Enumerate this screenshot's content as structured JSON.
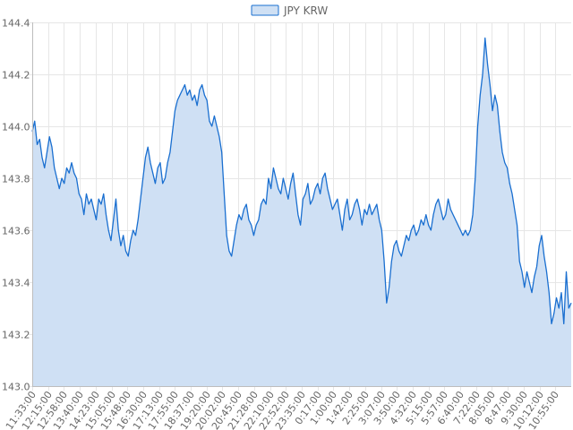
{
  "chart_data": {
    "type": "area",
    "legend": {
      "label": "JPY KRW",
      "placement": "top-center"
    },
    "colors": {
      "line": "#1a6fd0",
      "fill": "#cfe0f4",
      "grid": "#e6e6e6"
    },
    "grid": true,
    "ylim": [
      143.0,
      144.4
    ],
    "y_ticks": [
      "143.0",
      "143.2",
      "143.4",
      "143.6",
      "143.8",
      "144.0",
      "144.2",
      "144.4"
    ],
    "x_ticks": [
      "11:33:00",
      "12:15:00",
      "12:58:00",
      "13:40:00",
      "14:23:00",
      "15:05:00",
      "15:48:00",
      "16:30:00",
      "17:13:00",
      "17:55:00",
      "18:37:00",
      "19:20:00",
      "20:02:00",
      "20:45:00",
      "21:28:00",
      "22:10:00",
      "22:52:00",
      "23:35:00",
      "0:17:00",
      "1:00:00",
      "1:42:00",
      "2:25:00",
      "3:07:00",
      "3:50:00",
      "4:32:00",
      "5:15:00",
      "5:57:00",
      "6:40:00",
      "7:22:00",
      "8:05:00",
      "8:47:00",
      "9:30:00",
      "10:12:00",
      "10:55:00"
    ],
    "series": [
      {
        "name": "JPY KRW",
        "values": [
          143.98,
          144.02,
          143.93,
          143.95,
          143.88,
          143.84,
          143.9,
          143.96,
          143.92,
          143.84,
          143.8,
          143.76,
          143.8,
          143.78,
          143.84,
          143.82,
          143.86,
          143.82,
          143.8,
          143.74,
          143.72,
          143.66,
          143.74,
          143.7,
          143.72,
          143.68,
          143.64,
          143.72,
          143.7,
          143.74,
          143.66,
          143.6,
          143.56,
          143.64,
          143.72,
          143.6,
          143.54,
          143.58,
          143.52,
          143.5,
          143.56,
          143.6,
          143.58,
          143.64,
          143.72,
          143.8,
          143.88,
          143.92,
          143.86,
          143.82,
          143.78,
          143.84,
          143.86,
          143.78,
          143.8,
          143.86,
          143.9,
          143.98,
          144.06,
          144.1,
          144.12,
          144.14,
          144.16,
          144.12,
          144.14,
          144.1,
          144.12,
          144.08,
          144.14,
          144.16,
          144.12,
          144.1,
          144.02,
          144.0,
          144.04,
          144.0,
          143.96,
          143.9,
          143.74,
          143.58,
          143.52,
          143.5,
          143.56,
          143.62,
          143.66,
          143.64,
          143.68,
          143.7,
          143.64,
          143.62,
          143.58,
          143.62,
          143.64,
          143.7,
          143.72,
          143.7,
          143.8,
          143.76,
          143.84,
          143.8,
          143.76,
          143.74,
          143.8,
          143.76,
          143.72,
          143.78,
          143.82,
          143.74,
          143.66,
          143.62,
          143.72,
          143.74,
          143.78,
          143.7,
          143.72,
          143.76,
          143.78,
          143.74,
          143.8,
          143.82,
          143.76,
          143.72,
          143.68,
          143.7,
          143.72,
          143.66,
          143.6,
          143.68,
          143.72,
          143.64,
          143.66,
          143.7,
          143.72,
          143.68,
          143.62,
          143.68,
          143.66,
          143.7,
          143.66,
          143.68,
          143.7,
          143.64,
          143.6,
          143.48,
          143.32,
          143.38,
          143.48,
          143.54,
          143.56,
          143.52,
          143.5,
          143.54,
          143.58,
          143.56,
          143.6,
          143.62,
          143.58,
          143.6,
          143.64,
          143.62,
          143.66,
          143.62,
          143.6,
          143.66,
          143.7,
          143.72,
          143.68,
          143.64,
          143.66,
          143.72,
          143.68,
          143.66,
          143.64,
          143.62,
          143.6,
          143.58,
          143.6,
          143.58,
          143.6,
          143.66,
          143.8,
          144.0,
          144.12,
          144.2,
          144.34,
          144.24,
          144.16,
          144.06,
          144.12,
          144.08,
          143.98,
          143.9,
          143.86,
          143.84,
          143.78,
          143.74,
          143.68,
          143.62,
          143.48,
          143.44,
          143.38,
          143.44,
          143.4,
          143.36,
          143.42,
          143.46,
          143.54,
          143.58,
          143.5,
          143.44,
          143.36,
          143.24,
          143.28,
          143.34,
          143.3,
          143.36,
          143.24,
          143.44,
          143.3,
          143.32
        ]
      }
    ]
  }
}
